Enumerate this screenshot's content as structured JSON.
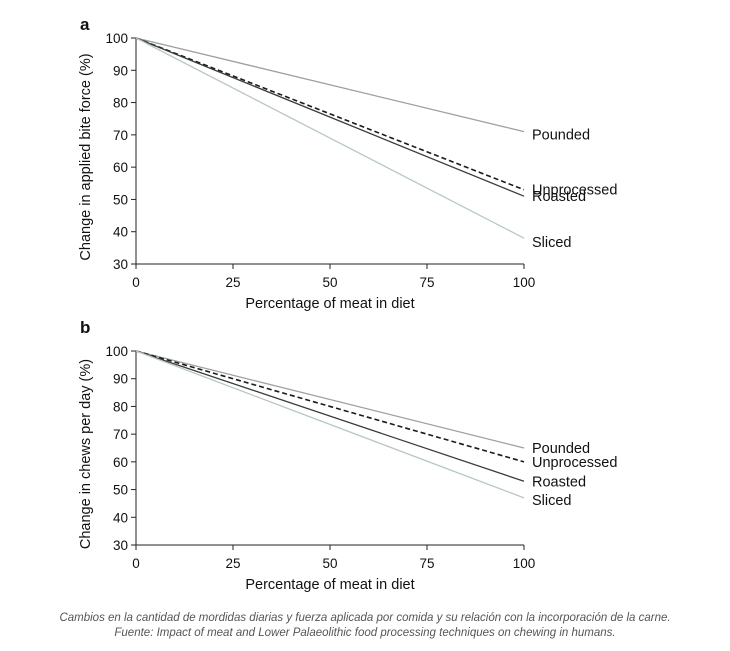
{
  "chart_data": [
    {
      "panel_label": "a",
      "type": "line",
      "xlabel": "Percentage of meat in diet",
      "ylabel": "Change in applied bite force (%)",
      "xlim": [
        0,
        100
      ],
      "ylim": [
        30,
        100
      ],
      "xticks": [
        0,
        25,
        50,
        75,
        100
      ],
      "yticks": [
        30,
        40,
        50,
        60,
        70,
        80,
        90,
        100
      ],
      "grid": false,
      "series": [
        {
          "name": "Pounded",
          "x": [
            0,
            100
          ],
          "y": [
            100,
            71
          ],
          "color": "#9e9e9e",
          "dash": "solid"
        },
        {
          "name": "Unprocessed",
          "x": [
            0,
            100
          ],
          "y": [
            100,
            53
          ],
          "color": "#1a1a1a",
          "dash": "dashed"
        },
        {
          "name": "Roasted",
          "x": [
            0,
            100
          ],
          "y": [
            100,
            51
          ],
          "color": "#3a3a3a",
          "dash": "solid"
        },
        {
          "name": "Sliced",
          "x": [
            0,
            100
          ],
          "y": [
            100,
            38
          ],
          "color": "#b7c9c0",
          "dash": "solid"
        }
      ]
    },
    {
      "panel_label": "b",
      "type": "line",
      "xlabel": "Percentage of meat in diet",
      "ylabel": "Change in chews per day (%)",
      "xlim": [
        0,
        100
      ],
      "ylim": [
        30,
        100
      ],
      "xticks": [
        0,
        25,
        50,
        75,
        100
      ],
      "yticks": [
        30,
        40,
        50,
        60,
        70,
        80,
        90,
        100
      ],
      "grid": false,
      "series": [
        {
          "name": "Pounded",
          "x": [
            0,
            100
          ],
          "y": [
            100,
            65
          ],
          "color": "#9e9e9e",
          "dash": "solid"
        },
        {
          "name": "Unprocessed",
          "x": [
            0,
            100
          ],
          "y": [
            100,
            60
          ],
          "color": "#1a1a1a",
          "dash": "dashed"
        },
        {
          "name": "Roasted",
          "x": [
            0,
            100
          ],
          "y": [
            100,
            53
          ],
          "color": "#3a3a3a",
          "dash": "solid"
        },
        {
          "name": "Sliced",
          "x": [
            0,
            100
          ],
          "y": [
            100,
            47
          ],
          "color": "#b7c9c0",
          "dash": "solid"
        }
      ]
    }
  ],
  "caption": "Cambios en la cantidad de mordidas diarias y fuerza aplicada por comida y su relación con la incorporación de la carne. Fuente: Impact of meat and Lower Palaeolithic food processing techniques on chewing in humans."
}
